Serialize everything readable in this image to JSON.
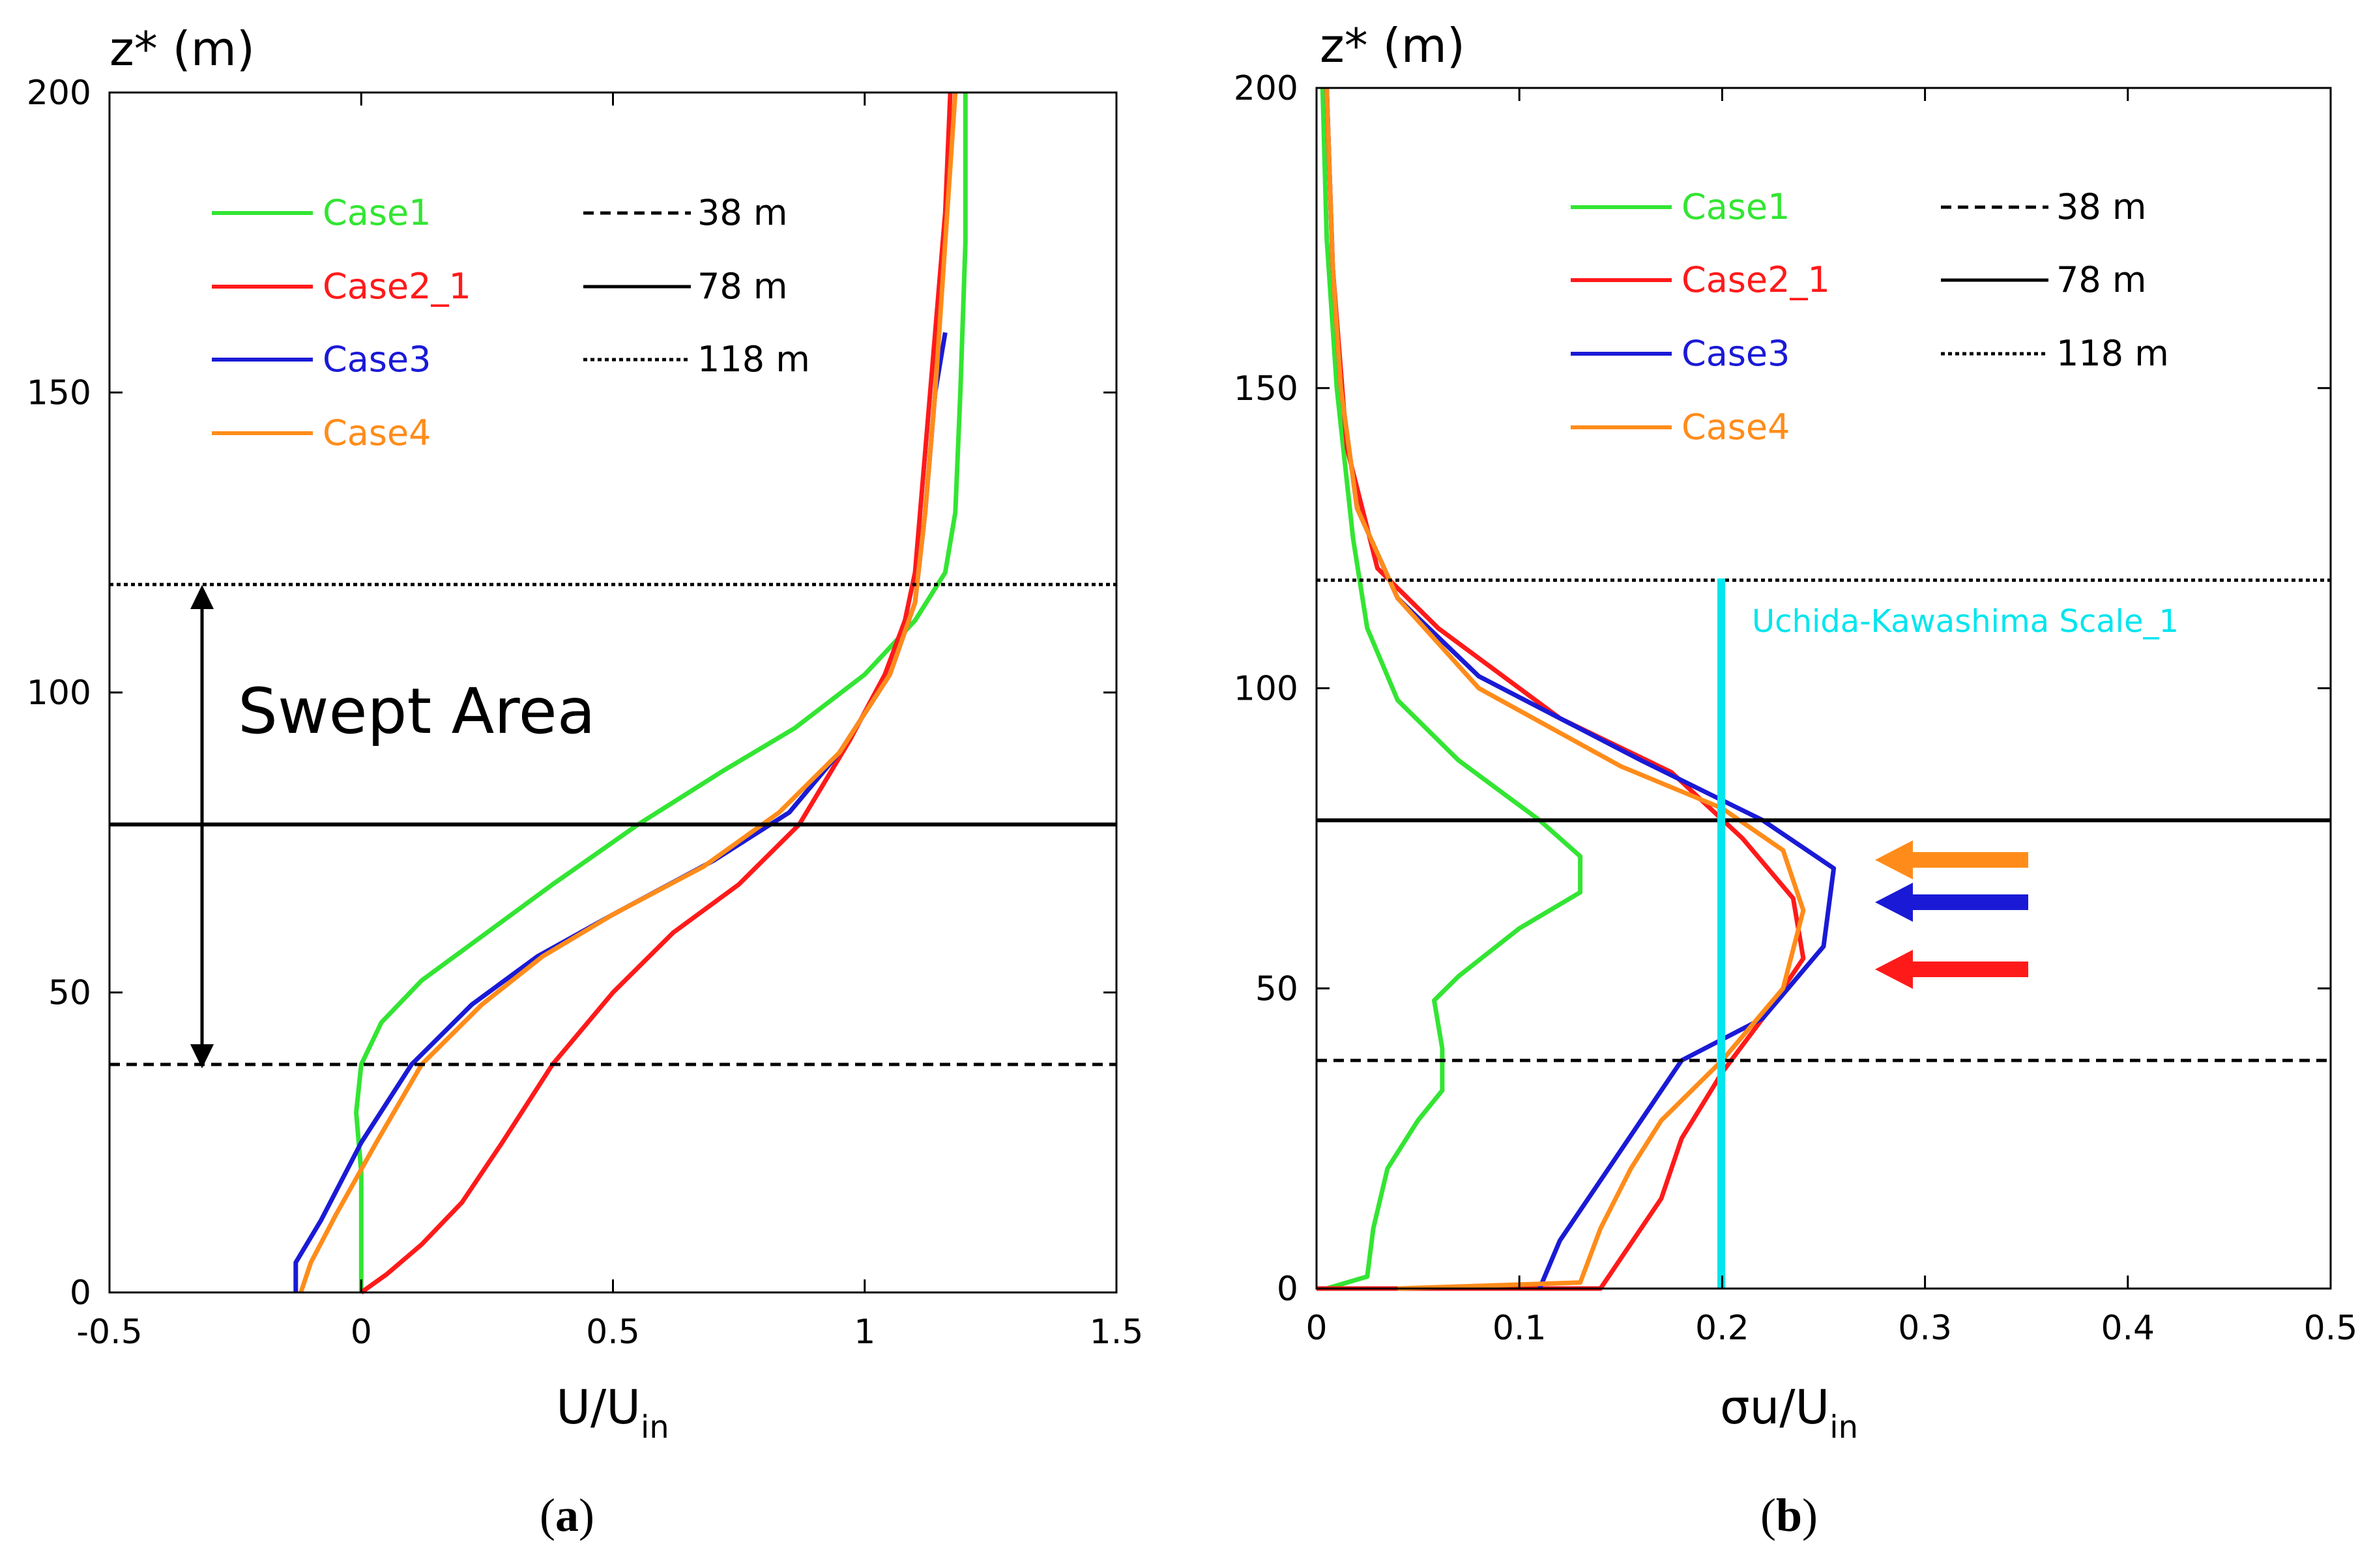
{
  "colors": {
    "case1": "#33e533",
    "case2_1": "#ff1a1a",
    "case3": "#1a1ad6",
    "case4": "#ff8c1a",
    "uk_scale": "#00e5ee",
    "hub": "#000000"
  },
  "chart_data": [
    {
      "type": "line",
      "panel_label": "(a)",
      "caption_letter": "a",
      "ylabel": "z* (m)",
      "xlabel_main": "U/U",
      "xlabel_sub": "in",
      "xlim": [
        -0.5,
        1.5
      ],
      "ylim": [
        0,
        200
      ],
      "xticks": [
        "-0.5",
        "0",
        "0.5",
        "1",
        "1.5"
      ],
      "xtick_values": [
        -0.5,
        0,
        0.5,
        1,
        1.5
      ],
      "yticks": [
        "0",
        "50",
        "100",
        "150",
        "200"
      ],
      "ytick_values": [
        0,
        50,
        100,
        150,
        200
      ],
      "grid": false,
      "legend": {
        "cases": [
          "Case1",
          "Case2_1",
          "Case3",
          "Case4"
        ],
        "heights": [
          "38 m",
          "78 m",
          "118 m"
        ]
      },
      "series": [
        {
          "name": "Case1",
          "color_key": "case1",
          "points": [
            [
              0,
              0
            ],
            [
              0.0,
              10
            ],
            [
              0.0,
              20
            ],
            [
              -0.01,
              30
            ],
            [
              0.0,
              38
            ],
            [
              0.04,
              45
            ],
            [
              0.12,
              52
            ],
            [
              0.25,
              60
            ],
            [
              0.38,
              68
            ],
            [
              0.55,
              78
            ],
            [
              0.72,
              87
            ],
            [
              0.86,
              94
            ],
            [
              1.0,
              103
            ],
            [
              1.1,
              112
            ],
            [
              1.16,
              120
            ],
            [
              1.18,
              130
            ],
            [
              1.19,
              150
            ],
            [
              1.2,
              175
            ],
            [
              1.2,
              200
            ]
          ]
        },
        {
          "name": "Case2_1",
          "color_key": "case2_1",
          "points": [
            [
              0.0,
              0
            ],
            [
              0.05,
              3
            ],
            [
              0.12,
              8
            ],
            [
              0.2,
              15
            ],
            [
              0.28,
              25
            ],
            [
              0.38,
              38
            ],
            [
              0.5,
              50
            ],
            [
              0.62,
              60
            ],
            [
              0.75,
              68
            ],
            [
              0.87,
              78
            ],
            [
              0.97,
              92
            ],
            [
              1.04,
              103
            ],
            [
              1.08,
              112
            ],
            [
              1.1,
              120
            ],
            [
              1.12,
              140
            ],
            [
              1.14,
              160
            ],
            [
              1.16,
              180
            ],
            [
              1.17,
              200
            ]
          ]
        },
        {
          "name": "Case3",
          "color_key": "case3",
          "points": [
            [
              -0.13,
              0
            ],
            [
              -0.13,
              5
            ],
            [
              -0.08,
              12
            ],
            [
              0.0,
              25
            ],
            [
              0.1,
              38
            ],
            [
              0.22,
              48
            ],
            [
              0.35,
              56
            ],
            [
              0.5,
              63
            ],
            [
              0.7,
              72
            ],
            [
              0.85,
              80
            ],
            [
              0.95,
              90
            ],
            [
              1.05,
              103
            ],
            [
              1.1,
              115
            ],
            [
              1.12,
              130
            ],
            [
              1.14,
              150
            ],
            [
              1.16,
              160
            ]
          ]
        },
        {
          "name": "Case4",
          "color_key": "case4",
          "points": [
            [
              -0.12,
              0
            ],
            [
              -0.1,
              5
            ],
            [
              -0.05,
              13
            ],
            [
              0.03,
              25
            ],
            [
              0.12,
              38
            ],
            [
              0.24,
              48
            ],
            [
              0.36,
              56
            ],
            [
              0.5,
              63
            ],
            [
              0.68,
              71
            ],
            [
              0.83,
              80
            ],
            [
              0.95,
              90
            ],
            [
              1.05,
              103
            ],
            [
              1.1,
              115
            ],
            [
              1.12,
              130
            ],
            [
              1.14,
              150
            ],
            [
              1.16,
              175
            ],
            [
              1.18,
              200
            ]
          ]
        }
      ],
      "hlines": [
        {
          "label": "38 m",
          "y": 38,
          "style": "dashed"
        },
        {
          "label": "78 m",
          "y": 78,
          "style": "solid"
        },
        {
          "label": "118 m",
          "y": 118,
          "style": "dotted"
        }
      ],
      "annotations": [
        {
          "text": "Swept Area",
          "from_y": 38,
          "to_y": 118,
          "x": -0.32
        }
      ]
    },
    {
      "type": "line",
      "panel_label": "(b)",
      "caption_letter": "b",
      "ylabel": "z* (m)",
      "xlabel_main": "σu/U",
      "xlabel_sub": "in",
      "xlim": [
        0,
        0.5
      ],
      "ylim": [
        0,
        200
      ],
      "xticks": [
        "0",
        "0.1",
        "0.2",
        "0.3",
        "0.4",
        "0.5"
      ],
      "xtick_values": [
        0,
        0.1,
        0.2,
        0.3,
        0.4,
        0.5
      ],
      "yticks": [
        "0",
        "50",
        "100",
        "150",
        "200"
      ],
      "ytick_values": [
        0,
        50,
        100,
        150,
        200
      ],
      "grid": false,
      "legend": {
        "cases": [
          "Case1",
          "Case2_1",
          "Case3",
          "Case4"
        ],
        "heights": [
          "38 m",
          "78 m",
          "118 m"
        ]
      },
      "series": [
        {
          "name": "Case1",
          "color_key": "case1",
          "points": [
            [
              0.005,
              0
            ],
            [
              0.025,
              2
            ],
            [
              0.028,
              10
            ],
            [
              0.035,
              20
            ],
            [
              0.05,
              28
            ],
            [
              0.062,
              33
            ],
            [
              0.062,
              40
            ],
            [
              0.058,
              48
            ],
            [
              0.07,
              52
            ],
            [
              0.1,
              60
            ],
            [
              0.13,
              66
            ],
            [
              0.13,
              72
            ],
            [
              0.11,
              78
            ],
            [
              0.07,
              88
            ],
            [
              0.04,
              98
            ],
            [
              0.025,
              110
            ],
            [
              0.018,
              125
            ],
            [
              0.01,
              150
            ],
            [
              0.005,
              175
            ],
            [
              0.003,
              200
            ]
          ]
        },
        {
          "name": "Case2_1",
          "color_key": "case2_1",
          "points": [
            [
              0.0,
              0
            ],
            [
              0.14,
              0
            ],
            [
              0.15,
              5
            ],
            [
              0.17,
              15
            ],
            [
              0.18,
              25
            ],
            [
              0.2,
              36
            ],
            [
              0.22,
              45
            ],
            [
              0.24,
              55
            ],
            [
              0.235,
              65
            ],
            [
              0.21,
              75
            ],
            [
              0.175,
              86
            ],
            [
              0.12,
              95
            ],
            [
              0.06,
              110
            ],
            [
              0.03,
              120
            ],
            [
              0.015,
              140
            ],
            [
              0.008,
              170
            ],
            [
              0.005,
              200
            ]
          ]
        },
        {
          "name": "Case3",
          "color_key": "case3",
          "points": [
            [
              0.11,
              0
            ],
            [
              0.12,
              8
            ],
            [
              0.14,
              18
            ],
            [
              0.16,
              28
            ],
            [
              0.18,
              38
            ],
            [
              0.22,
              45
            ],
            [
              0.25,
              57
            ],
            [
              0.255,
              70
            ],
            [
              0.22,
              78
            ],
            [
              0.16,
              88
            ],
            [
              0.08,
              102
            ],
            [
              0.04,
              115
            ],
            [
              0.02,
              130
            ],
            [
              0.012,
              150
            ],
            [
              0.008,
              170
            ],
            [
              0.005,
              200
            ]
          ]
        },
        {
          "name": "Case4",
          "color_key": "case4",
          "points": [
            [
              0.04,
              0
            ],
            [
              0.13,
              1
            ],
            [
              0.14,
              10
            ],
            [
              0.155,
              20
            ],
            [
              0.17,
              28
            ],
            [
              0.2,
              38
            ],
            [
              0.23,
              50
            ],
            [
              0.24,
              63
            ],
            [
              0.23,
              73
            ],
            [
              0.2,
              80
            ],
            [
              0.15,
              87
            ],
            [
              0.08,
              100
            ],
            [
              0.04,
              115
            ],
            [
              0.02,
              130
            ],
            [
              0.012,
              150
            ],
            [
              0.008,
              170
            ],
            [
              0.005,
              200
            ]
          ]
        }
      ],
      "hlines": [
        {
          "label": "38 m",
          "y": 38,
          "style": "dashed"
        },
        {
          "label": "78 m",
          "y": 78,
          "style": "solid"
        },
        {
          "label": "118 m",
          "y": 118,
          "style": "dotted"
        }
      ],
      "vline": {
        "label": "Uchida-Kawashima Scale_1",
        "x": 0.2,
        "from_y": 0,
        "to_y": 118
      },
      "arrows": [
        {
          "color_key": "case4",
          "y": 72
        },
        {
          "color_key": "case3",
          "y": 65
        },
        {
          "color_key": "case2_1",
          "y": 54
        }
      ]
    }
  ]
}
